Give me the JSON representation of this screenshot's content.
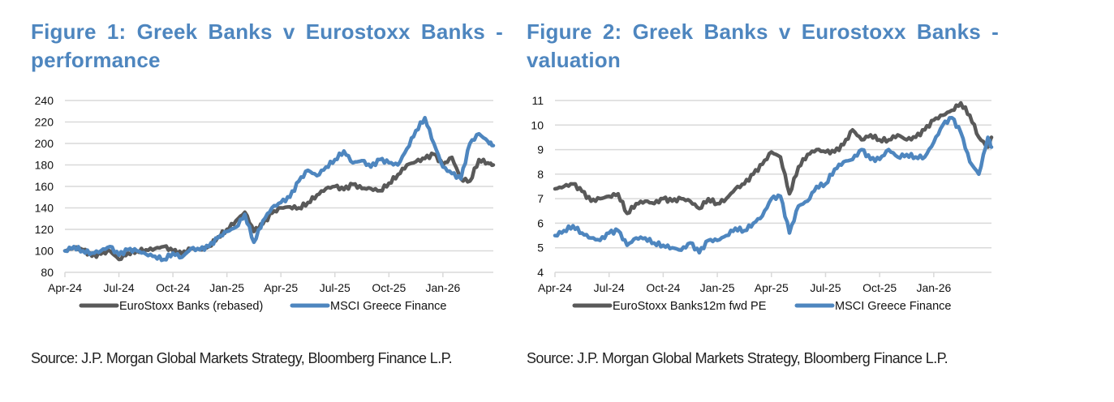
{
  "chart_data": [
    {
      "type": "line",
      "title": "Figure 1: Greek Banks v Eurostoxx Banks - performance",
      "source": "Source: J.P. Morgan Global Markets Strategy, Bloomberg Finance L.P.",
      "xlabel": "",
      "ylabel": "",
      "ylim": [
        80,
        240
      ],
      "yticks": [
        80,
        100,
        120,
        140,
        160,
        180,
        200,
        220,
        240
      ],
      "xticks": [
        "Apr-24",
        "Jul-24",
        "Oct-24",
        "Jan-25",
        "Apr-25",
        "Jul-25",
        "Oct-25",
        "Jan-26"
      ],
      "x_range_months": [
        0,
        23.8
      ],
      "grid": true,
      "legend": "bottom",
      "x_months": [
        0,
        0.5,
        1,
        1.5,
        2,
        2.5,
        3,
        3.5,
        4,
        4.5,
        5,
        5.5,
        6,
        6.5,
        7,
        7.5,
        8,
        8.5,
        9,
        9.5,
        10,
        10.5,
        11,
        11.5,
        12,
        12.5,
        13,
        13.5,
        14,
        14.5,
        15,
        15.5,
        16,
        16.5,
        17,
        17.5,
        18,
        18.5,
        19,
        19.5,
        20,
        20.5,
        21,
        21.5,
        22,
        22.5,
        23,
        23.5,
        23.8
      ],
      "series": [
        {
          "name": "EuroStoxx Banks (rebased)",
          "color": "#595959",
          "values": [
            100,
            103,
            101,
            95,
            97,
            100,
            92,
            98,
            100,
            101,
            102,
            104,
            100,
            97,
            102,
            101,
            104,
            113,
            120,
            128,
            136,
            118,
            125,
            135,
            140,
            141,
            140,
            145,
            152,
            158,
            160,
            157,
            162,
            158,
            158,
            156,
            163,
            171,
            180,
            183,
            186,
            190,
            180,
            187,
            167,
            165,
            185,
            182,
            180
          ]
        },
        {
          "name": "MSCI Greece Finance",
          "color": "#4e86bf",
          "values": [
            100,
            104,
            100,
            98,
            100,
            104,
            96,
            101,
            100,
            97,
            95,
            92,
            98,
            94,
            102,
            101,
            104,
            112,
            118,
            122,
            134,
            108,
            128,
            140,
            145,
            150,
            165,
            175,
            170,
            178,
            185,
            193,
            182,
            184,
            178,
            185,
            182,
            180,
            195,
            212,
            224,
            200,
            178,
            172,
            167,
            200,
            209,
            202,
            198
          ]
        }
      ]
    },
    {
      "type": "line",
      "title": "Figure 2: Greek Banks v Eurostoxx Banks - valuation",
      "source": "Source: J.P. Morgan Global Markets Strategy, Bloomberg Finance L.P.",
      "xlabel": "",
      "ylabel": "",
      "ylim": [
        4,
        11
      ],
      "yticks": [
        4,
        5,
        6,
        7,
        8,
        9,
        10,
        11
      ],
      "xticks": [
        "Apr-24",
        "Jul-24",
        "Oct-24",
        "Jan-25",
        "Apr-25",
        "Jul-25",
        "Oct-25",
        "Jan-26"
      ],
      "x_range_months": [
        0,
        24.2
      ],
      "grid": true,
      "legend": "bottom",
      "x_months": [
        0,
        0.5,
        1,
        1.5,
        2,
        2.5,
        3,
        3.5,
        4,
        4.5,
        5,
        5.5,
        6,
        6.5,
        7,
        7.5,
        8,
        8.5,
        9,
        9.5,
        10,
        10.5,
        11,
        11.5,
        12,
        12.5,
        13,
        13.5,
        14,
        14.5,
        15,
        15.5,
        16,
        16.5,
        17,
        17.5,
        18,
        18.5,
        19,
        19.5,
        20,
        20.5,
        21,
        21.5,
        22,
        22.5,
        23,
        23.5,
        24,
        24.2
      ],
      "series": [
        {
          "name": "EuroStoxx Banks12m fwd PE",
          "color": "#595959",
          "values": [
            7.4,
            7.5,
            7.6,
            7.3,
            6.9,
            7.0,
            7.1,
            7.2,
            6.4,
            6.8,
            6.9,
            6.8,
            7.0,
            6.9,
            7.0,
            6.9,
            6.6,
            7.0,
            6.8,
            7.0,
            7.4,
            7.6,
            8.0,
            8.4,
            8.9,
            8.7,
            7.2,
            8.3,
            8.8,
            9.0,
            8.9,
            8.9,
            9.2,
            9.8,
            9.4,
            9.6,
            9.4,
            9.4,
            9.6,
            9.4,
            9.5,
            9.8,
            10.2,
            10.4,
            10.6,
            10.9,
            10.4,
            9.5,
            9.1,
            9.5
          ]
        },
        {
          "name": "MSCI Greece Finance",
          "color": "#4e86bf",
          "values": [
            5.5,
            5.7,
            5.9,
            5.6,
            5.4,
            5.3,
            5.6,
            5.7,
            5.1,
            5.4,
            5.4,
            5.2,
            5.1,
            5.0,
            4.9,
            5.2,
            4.8,
            5.3,
            5.3,
            5.5,
            5.8,
            5.7,
            6.0,
            6.3,
            7.0,
            7.1,
            5.6,
            6.7,
            6.9,
            7.5,
            7.6,
            8.2,
            8.5,
            8.6,
            9.0,
            8.6,
            8.6,
            9.0,
            8.7,
            8.8,
            8.7,
            8.7,
            9.3,
            10.0,
            10.3,
            9.7,
            8.5,
            8.0,
            9.5,
            9.1
          ]
        }
      ]
    }
  ],
  "figures": [
    {
      "title": "Figure 1: Greek Banks v Eurostoxx Banks - performance",
      "source": "Source: J.P. Morgan Global Markets Strategy, Bloomberg Finance L.P."
    },
    {
      "title": "Figure 2: Greek Banks v Eurostoxx Banks - valuation",
      "source": "Source: J.P. Morgan Global Markets Strategy, Bloomberg Finance L.P."
    }
  ]
}
